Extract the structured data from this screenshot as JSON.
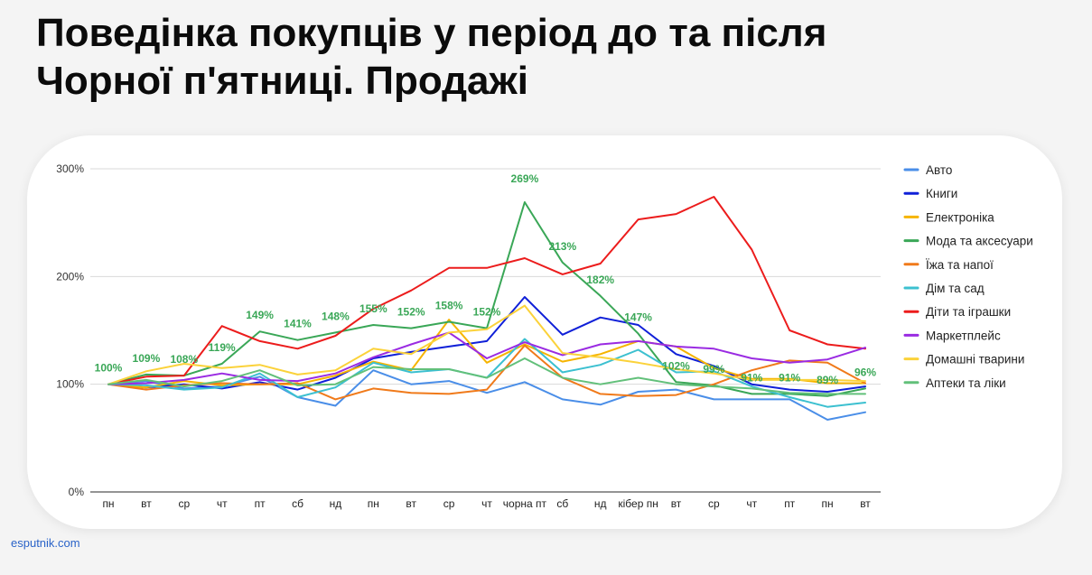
{
  "title_lines": [
    "Поведінка покупців у період до та після",
    "Чорної п'ятниці. Продажі"
  ],
  "footer": "esputnik.com",
  "chart_data": {
    "type": "line",
    "x": [
      "пн",
      "вт",
      "ср",
      "чт",
      "пт",
      "сб",
      "нд",
      "пн",
      "вт",
      "ср",
      "чт",
      "чорна пт",
      "сб",
      "нд",
      "кібер пн",
      "вт",
      "ср",
      "чт",
      "пт",
      "пн",
      "вт"
    ],
    "yticks": [
      "0%",
      "100%",
      "200%",
      "300%"
    ],
    "ylim": [
      0,
      300
    ],
    "grid": true,
    "legend_position": "right",
    "annotated_series": "Мода та аксесуари",
    "annotations": [
      {
        "i": 0,
        "text": "100%"
      },
      {
        "i": 1,
        "text": "109%"
      },
      {
        "i": 2,
        "text": "108%"
      },
      {
        "i": 3,
        "text": "119%"
      },
      {
        "i": 4,
        "text": "149%"
      },
      {
        "i": 5,
        "text": "141%"
      },
      {
        "i": 6,
        "text": "148%"
      },
      {
        "i": 7,
        "text": "155%"
      },
      {
        "i": 8,
        "text": "152%"
      },
      {
        "i": 9,
        "text": "158%"
      },
      {
        "i": 10,
        "text": "152%"
      },
      {
        "i": 11,
        "text": "269%"
      },
      {
        "i": 12,
        "text": "213%"
      },
      {
        "i": 13,
        "text": "182%"
      },
      {
        "i": 14,
        "text": "147%"
      },
      {
        "i": 15,
        "text": "102%"
      },
      {
        "i": 16,
        "text": "99%"
      },
      {
        "i": 17,
        "text": "91%"
      },
      {
        "i": 18,
        "text": "91%"
      },
      {
        "i": 19,
        "text": "89%"
      },
      {
        "i": 20,
        "text": "96%"
      }
    ],
    "series": [
      {
        "name": "Авто",
        "color": "#4a8ee8",
        "values": [
          100,
          103,
          96,
          98,
          107,
          88,
          80,
          113,
          100,
          103,
          92,
          102,
          86,
          81,
          93,
          95,
          86,
          86,
          86,
          67,
          74
        ]
      },
      {
        "name": "Книги",
        "color": "#1020d8",
        "values": [
          100,
          97,
          100,
          96,
          102,
          95,
          106,
          124,
          130,
          135,
          140,
          181,
          146,
          162,
          155,
          128,
          117,
          100,
          95,
          93,
          98
        ]
      },
      {
        "name": "Електроніка",
        "color": "#f6b400",
        "values": [
          100,
          97,
          103,
          99,
          100,
          100,
          108,
          121,
          113,
          160,
          120,
          137,
          121,
          128,
          140,
          135,
          115,
          105,
          105,
          101,
          101
        ]
      },
      {
        "name": "Мода та аксесуари",
        "color": "#3aa757",
        "values": [
          100,
          109,
          108,
          119,
          149,
          141,
          148,
          155,
          152,
          158,
          152,
          269,
          213,
          182,
          147,
          102,
          99,
          91,
          91,
          89,
          96
        ]
      },
      {
        "name": "Їжа та напої",
        "color": "#f07a1a",
        "values": [
          100,
          95,
          99,
          101,
          100,
          101,
          86,
          96,
          92,
          91,
          95,
          136,
          106,
          91,
          89,
          90,
          100,
          113,
          122,
          120,
          101
        ]
      },
      {
        "name": "Дім та сад",
        "color": "#3cc0d0",
        "values": [
          100,
          99,
          95,
          97,
          110,
          88,
          97,
          120,
          111,
          114,
          106,
          142,
          111,
          118,
          132,
          111,
          112,
          98,
          88,
          79,
          83
        ]
      },
      {
        "name": "Діти та іграшки",
        "color": "#ec1c1c",
        "values": [
          100,
          107,
          108,
          154,
          140,
          133,
          145,
          170,
          187,
          208,
          208,
          217,
          202,
          212,
          253,
          258,
          274,
          225,
          150,
          137,
          133
        ]
      },
      {
        "name": "Маркетплейс",
        "color": "#9a2be2",
        "values": [
          100,
          101,
          104,
          110,
          104,
          103,
          110,
          125,
          137,
          148,
          124,
          139,
          127,
          137,
          140,
          135,
          133,
          124,
          120,
          123,
          134
        ]
      },
      {
        "name": "Домашні тварини",
        "color": "#fbd23a",
        "values": [
          100,
          112,
          119,
          115,
          118,
          109,
          113,
          133,
          128,
          148,
          151,
          173,
          129,
          125,
          120,
          114,
          110,
          104,
          104,
          104,
          103
        ]
      },
      {
        "name": "Аптеки та ліки",
        "color": "#62c07a",
        "values": [
          100,
          104,
          98,
          103,
          113,
          99,
          100,
          116,
          114,
          114,
          106,
          124,
          106,
          100,
          106,
          100,
          98,
          96,
          92,
          91,
          91
        ]
      }
    ]
  }
}
